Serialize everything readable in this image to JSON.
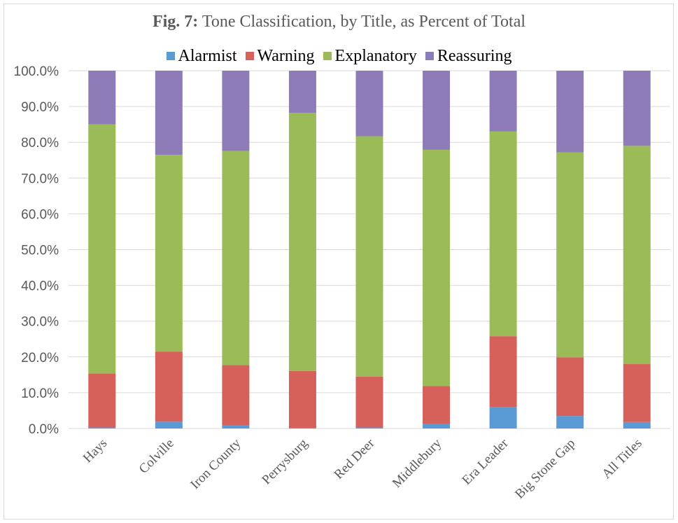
{
  "chart_data": {
    "type": "bar",
    "stacked": true,
    "title_bold": "Fig. 7:",
    "title": "Tone Classification, by Title, as Percent of Total",
    "xlabel": "",
    "ylabel": "",
    "ylim": [
      0,
      100
    ],
    "yticks": [
      "0.0%",
      "10.0%",
      "20.0%",
      "30.0%",
      "40.0%",
      "50.0%",
      "60.0%",
      "70.0%",
      "80.0%",
      "90.0%",
      "100.0%"
    ],
    "categories": [
      "Hays",
      "Colville",
      "Iron County",
      "Perrysburg",
      "Red Deer",
      "Middlebury",
      "Era Leader",
      "Big Stone Gap",
      "All Titles"
    ],
    "series": [
      {
        "name": "Alarmist",
        "color": "#5b9bd5",
        "values": [
          0.3,
          1.9,
          0.8,
          0.2,
          0.3,
          1.2,
          6.0,
          3.5,
          1.8
        ]
      },
      {
        "name": "Warning",
        "color": "#d6615b",
        "values": [
          15.1,
          19.6,
          16.9,
          15.9,
          14.2,
          10.7,
          19.8,
          16.4,
          16.2
        ]
      },
      {
        "name": "Explanatory",
        "color": "#9bbb59",
        "values": [
          69.6,
          55.0,
          59.9,
          72.1,
          67.2,
          66.0,
          57.2,
          57.3,
          61.0
        ]
      },
      {
        "name": "Reassuring",
        "color": "#8e7cb8",
        "values": [
          15.0,
          23.5,
          22.4,
          11.8,
          18.3,
          22.1,
          17.0,
          22.8,
          21.0
        ]
      }
    ],
    "legend_position": "top",
    "grid": true
  }
}
